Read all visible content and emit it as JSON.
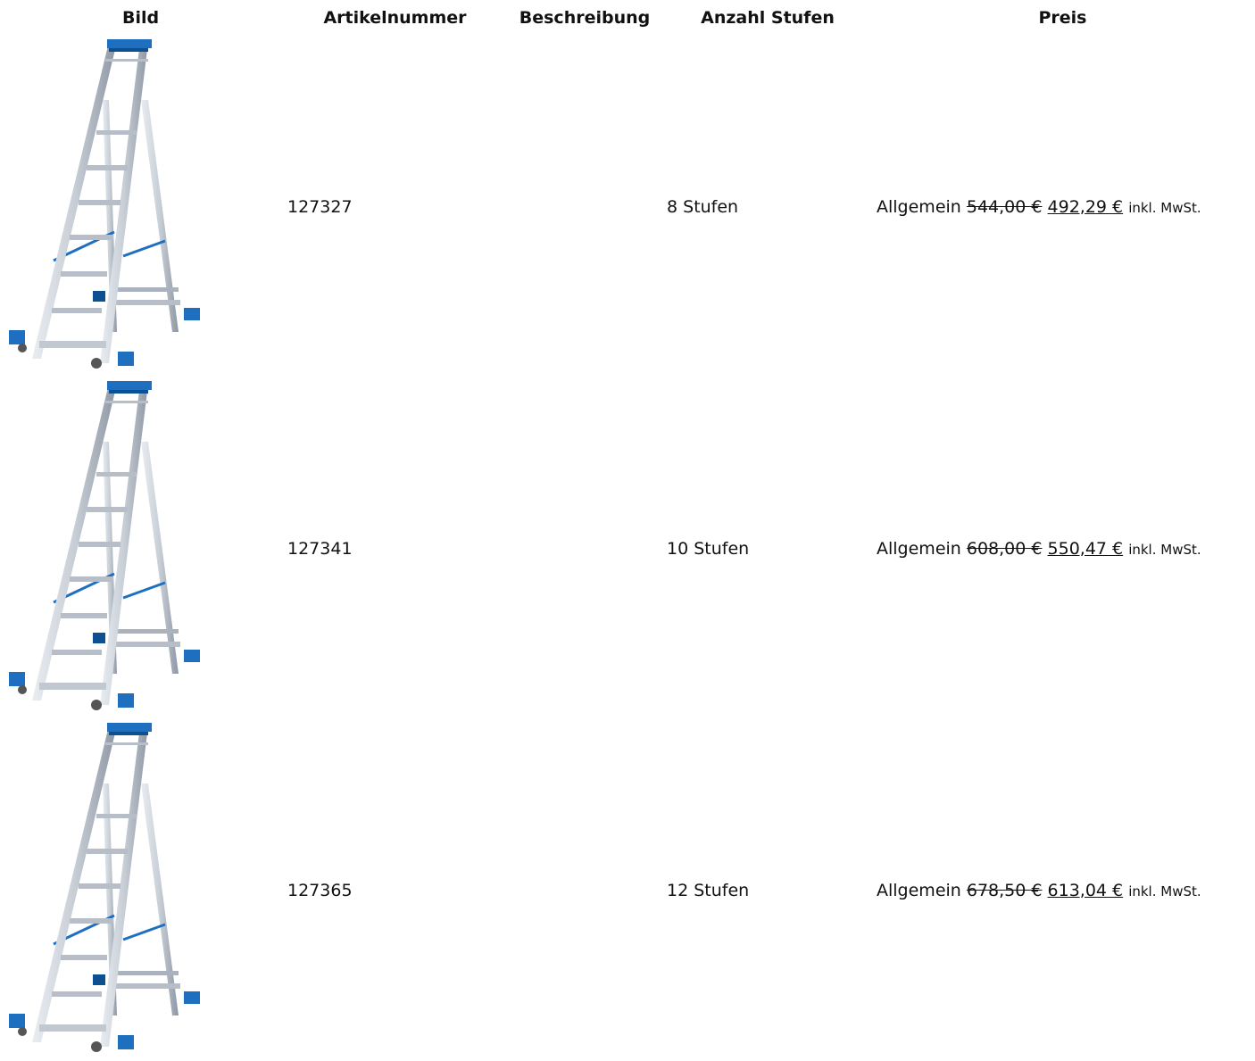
{
  "headers": {
    "image": "Bild",
    "article": "Artikelnummer",
    "description": "Beschreibung",
    "steps": "Anzahl Stufen",
    "price": "Preis"
  },
  "rows": [
    {
      "article_number": "127327",
      "description": "",
      "steps": "8 Stufen",
      "price_group": "Allgemein",
      "old_price": "544,00 €",
      "new_price": "492,29 €",
      "tax_note": "inkl. MwSt."
    },
    {
      "article_number": "127341",
      "description": "",
      "steps": "10 Stufen",
      "price_group": "Allgemein",
      "old_price": "608,00 €",
      "new_price": "550,47 €",
      "tax_note": "inkl. MwSt."
    },
    {
      "article_number": "127365",
      "description": "",
      "steps": "12 Stufen",
      "price_group": "Allgemein",
      "old_price": "678,50 €",
      "new_price": "613,04 €",
      "tax_note": "inkl. MwSt."
    }
  ],
  "colors": {
    "ladder_blue": "#1e6fc0",
    "ladder_dark_blue": "#0d4f93",
    "aluminium": "#c8ced6",
    "aluminium_shadow": "#8d96a3"
  },
  "icons": {
    "product_image": "step-ladder-with-platform"
  }
}
